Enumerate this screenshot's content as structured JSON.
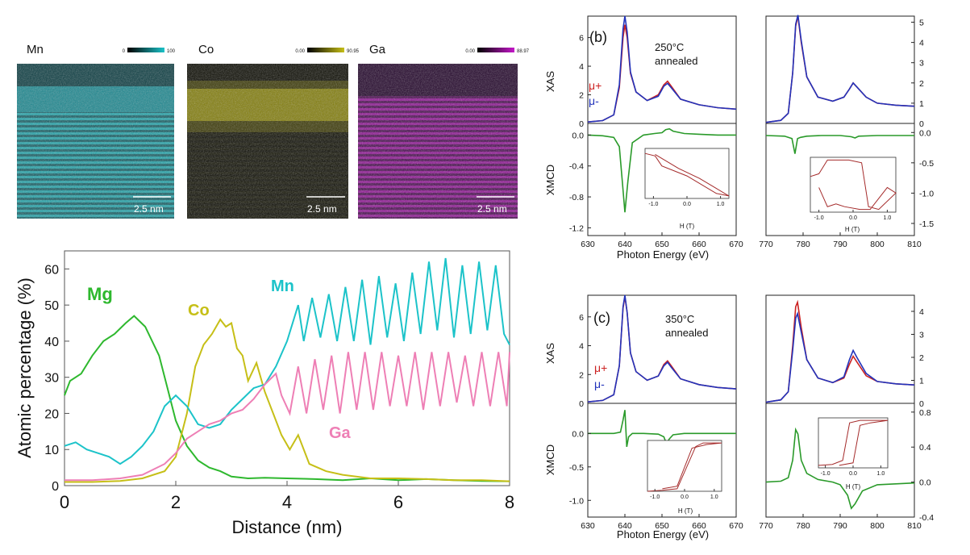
{
  "colors": {
    "mn": "#1cc3c9",
    "co": "#c6bf17",
    "ga": "#ee7fb5",
    "mg": "#2eb82e",
    "mu_plus": "#cc2222",
    "mu_minus": "#2233bb",
    "xmcd": "#2a9a2a",
    "loop": "#a42a2a"
  },
  "maps": [
    {
      "label": "Mn",
      "min": "0",
      "max": "100",
      "scale": "2.5 nm",
      "color": "#1cc3c9"
    },
    {
      "label": "Co",
      "min": "0.00",
      "max": "90.95",
      "scale": "2.5 nm",
      "color": "#c6bf17"
    },
    {
      "label": "Ga",
      "min": "0.00",
      "max": "88.97",
      "scale": "2.5 nm",
      "color": "#c417c9"
    }
  ],
  "chart_data": [
    {
      "type": "line",
      "xlabel": "Distance (nm)",
      "ylabel": "Atomic percentage (%)",
      "xlim": [
        0,
        8
      ],
      "ylim": [
        0,
        65
      ],
      "xticks": [
        "0",
        "2",
        "4",
        "6",
        "8"
      ],
      "yticks": [
        "0",
        "10",
        "20",
        "30",
        "40",
        "50",
        "60"
      ],
      "grid": false,
      "series": [
        {
          "name": "Mg",
          "color": "#2eb82e",
          "x": [
            0,
            0.1,
            0.3,
            0.5,
            0.7,
            0.9,
            1.1,
            1.25,
            1.45,
            1.7,
            1.85,
            2.0,
            2.2,
            2.4,
            2.6,
            2.8,
            3.0,
            3.3,
            3.6,
            4.0,
            4.5,
            5.0,
            5.5,
            6.0,
            6.5,
            7.0,
            7.5,
            8.0
          ],
          "y": [
            25,
            29,
            31,
            36,
            40,
            42,
            45,
            47,
            44,
            36,
            27,
            18,
            11,
            7,
            5,
            4,
            2.5,
            2,
            2.2,
            2,
            1.8,
            1.5,
            2,
            1.5,
            1.8,
            1.5,
            1.3,
            1.2
          ]
        },
        {
          "name": "Co",
          "color": "#c6bf17",
          "x": [
            0,
            0.5,
            1.0,
            1.4,
            1.8,
            2.0,
            2.2,
            2.35,
            2.5,
            2.65,
            2.8,
            2.9,
            3.0,
            3.1,
            3.2,
            3.3,
            3.45,
            3.6,
            3.75,
            3.9,
            4.05,
            4.2,
            4.4,
            4.7,
            5.0,
            5.5,
            6.0,
            6.5,
            7.0,
            7.5,
            8.0
          ],
          "y": [
            1,
            1,
            1.3,
            2,
            4,
            8,
            20,
            33,
            39,
            42,
            46,
            44,
            45,
            38,
            36,
            29,
            34,
            26,
            20,
            14,
            10,
            14,
            6,
            4,
            3,
            2,
            2,
            1.8,
            1.5,
            1.5,
            1.2
          ]
        },
        {
          "name": "Mn",
          "color": "#1cc3c9",
          "x": [
            0,
            0.2,
            0.4,
            0.6,
            0.8,
            1.0,
            1.2,
            1.4,
            1.6,
            1.8,
            2.0,
            2.2,
            2.4,
            2.6,
            2.8,
            3.0,
            3.2,
            3.4,
            3.6,
            3.8,
            4.0,
            4.2,
            4.3,
            4.45,
            4.6,
            4.75,
            4.9,
            5.05,
            5.2,
            5.35,
            5.5,
            5.65,
            5.8,
            5.95,
            6.1,
            6.25,
            6.4,
            6.55,
            6.7,
            6.85,
            7.0,
            7.15,
            7.3,
            7.45,
            7.6,
            7.75,
            7.9,
            8.0
          ],
          "y": [
            11,
            12,
            10,
            9,
            8,
            6,
            8,
            11,
            15,
            22,
            25,
            22,
            17,
            16,
            17,
            21,
            24,
            27,
            28,
            33,
            40,
            50,
            40,
            52,
            41,
            53,
            40,
            55,
            40,
            57,
            39,
            58,
            41,
            56,
            40,
            59,
            42,
            62,
            43,
            63,
            41,
            61,
            42,
            62,
            43,
            61,
            42,
            39
          ]
        },
        {
          "name": "Ga",
          "color": "#ee7fb5",
          "x": [
            0,
            0.5,
            1.0,
            1.4,
            1.8,
            2.0,
            2.2,
            2.4,
            2.6,
            2.8,
            3.0,
            3.2,
            3.4,
            3.6,
            3.8,
            3.9,
            4.05,
            4.2,
            4.35,
            4.5,
            4.65,
            4.8,
            4.95,
            5.1,
            5.25,
            5.4,
            5.55,
            5.7,
            5.85,
            6.0,
            6.15,
            6.3,
            6.45,
            6.6,
            6.75,
            6.9,
            7.05,
            7.2,
            7.35,
            7.5,
            7.65,
            7.8,
            7.95,
            8.0
          ],
          "y": [
            1.5,
            1.5,
            2,
            3,
            6,
            9,
            13,
            15,
            17,
            18,
            20,
            21,
            24,
            28,
            31,
            25,
            20,
            33,
            20,
            35,
            21,
            36,
            20,
            37,
            21,
            37,
            21,
            37,
            22,
            36,
            22,
            37,
            21,
            37,
            22,
            37,
            23,
            36,
            22,
            37,
            22,
            37,
            22,
            37
          ]
        }
      ],
      "annotations": [
        "Mg",
        "Co",
        "Mn",
        "Ga"
      ]
    },
    {
      "type": "line",
      "panel": "(b)",
      "annotation": [
        "250°C",
        "annealed"
      ],
      "xlabel": "Photon Energy (eV)",
      "ylabels": [
        "XAS",
        "XMCD"
      ],
      "legend": [
        "μ+",
        "μ-"
      ],
      "left_xlim": [
        630,
        670
      ],
      "right_xlim": [
        770,
        810
      ],
      "left_xticks": [
        "630",
        "640",
        "650",
        "660",
        "670"
      ],
      "right_xticks": [
        "770",
        "780",
        "790",
        "800",
        "810"
      ],
      "xas_left_ylim": [
        0,
        7.5
      ],
      "xas_left_yticks": [
        "0",
        "2",
        "4",
        "6"
      ],
      "xas_right_ylim": [
        0,
        5.3
      ],
      "xas_right_yticks": [
        "0",
        "1",
        "2",
        "3",
        "4",
        "5"
      ],
      "xmcd_left_ylim": [
        -1.3,
        0.15
      ],
      "xmcd_left_yticks": [
        "0.0",
        "-0.4",
        "-0.8",
        "-1.2"
      ],
      "xmcd_right_ylim": [
        -1.7,
        0.15
      ],
      "xmcd_right_yticks": [
        "0.0",
        "-0.5",
        "-1.0",
        "-1.5"
      ],
      "inset_xlabel": "H (T)",
      "inset_xticks": [
        "-1.0",
        "0.0",
        "1.0"
      ],
      "xas_left": {
        "x": [
          630,
          634,
          637,
          638.5,
          639.5,
          640,
          640.6,
          641.5,
          643,
          646,
          649,
          650.5,
          651.5,
          652.5,
          655,
          660,
          665,
          670
        ],
        "mu_plus": [
          0.1,
          0.2,
          0.6,
          2.5,
          6.0,
          6.9,
          6.0,
          3.5,
          2.2,
          1.6,
          2.0,
          2.7,
          2.95,
          2.6,
          1.7,
          1.3,
          1.1,
          1.0
        ],
        "mu_minus": [
          0.1,
          0.2,
          0.6,
          2.7,
          6.6,
          7.5,
          6.4,
          3.6,
          2.2,
          1.6,
          1.9,
          2.6,
          2.8,
          2.5,
          1.7,
          1.3,
          1.1,
          1.0
        ]
      },
      "xas_right": {
        "x": [
          770,
          774,
          776,
          777.2,
          778,
          778.6,
          779.5,
          781,
          784,
          788,
          791,
          792.5,
          793.5,
          794.5,
          797,
          800,
          805,
          810
        ],
        "mu_plus": [
          0.05,
          0.15,
          0.5,
          2.5,
          4.8,
          5.3,
          4.0,
          2.3,
          1.3,
          1.1,
          1.3,
          1.7,
          2.0,
          1.8,
          1.3,
          1.0,
          0.9,
          0.85
        ],
        "mu_minus": [
          0.05,
          0.15,
          0.5,
          2.5,
          4.9,
          5.35,
          4.1,
          2.3,
          1.3,
          1.1,
          1.3,
          1.7,
          2.0,
          1.8,
          1.3,
          1.0,
          0.9,
          0.85
        ]
      },
      "xmcd_left": {
        "x": [
          630,
          634,
          637,
          638.5,
          639.3,
          640,
          640.8,
          642,
          645,
          648,
          650,
          651,
          652,
          653,
          656,
          660,
          665,
          670
        ],
        "y": [
          0.0,
          -0.01,
          -0.03,
          -0.15,
          -0.6,
          -1.0,
          -0.6,
          -0.1,
          0.0,
          0.02,
          0.03,
          0.07,
          0.08,
          0.05,
          0.02,
          0.01,
          0.0,
          0.0
        ]
      },
      "xmcd_right": {
        "x": [
          770,
          775,
          777,
          777.8,
          778.5,
          779.3,
          781,
          785,
          790,
          793,
          794,
          795,
          800,
          805,
          810
        ],
        "y": [
          -0.05,
          -0.06,
          -0.1,
          -0.35,
          -0.1,
          -0.08,
          -0.06,
          -0.05,
          -0.05,
          -0.07,
          -0.09,
          -0.06,
          -0.05,
          -0.05,
          -0.05
        ]
      }
    },
    {
      "type": "line",
      "panel": "(c)",
      "annotation": [
        "350°C",
        "annealed"
      ],
      "xlabel": "Photon Energy (eV)",
      "ylabels": [
        "XAS",
        "XMCD"
      ],
      "legend": [
        "μ+",
        "μ-"
      ],
      "left_xlim": [
        630,
        670
      ],
      "right_xlim": [
        770,
        810
      ],
      "left_xticks": [
        "630",
        "640",
        "650",
        "660",
        "670"
      ],
      "right_xticks": [
        "770",
        "780",
        "790",
        "800",
        "810"
      ],
      "xas_left_ylim": [
        0,
        7.5
      ],
      "xas_left_yticks": [
        "0",
        "2",
        "4",
        "6"
      ],
      "xas_right_ylim": [
        0,
        4.7
      ],
      "xas_right_yticks": [
        "0",
        "1",
        "2",
        "3",
        "4"
      ],
      "xmcd_left_ylim": [
        -1.25,
        0.45
      ],
      "xmcd_left_yticks": [
        "0.0",
        "-0.5",
        "-1.0"
      ],
      "xmcd_right_ylim": [
        -0.4,
        0.9
      ],
      "xmcd_right_yticks": [
        "0.8",
        "0.4",
        "0.0",
        "-0.4"
      ],
      "inset_xlabel": "H (T)",
      "inset_xticks": [
        "-1.0",
        "0.0",
        "1.0"
      ],
      "xas_left": {
        "x": [
          630,
          634,
          637,
          638.5,
          639.5,
          640,
          640.6,
          641.5,
          643,
          646,
          649,
          650.5,
          651.5,
          652.5,
          655,
          660,
          665,
          670
        ],
        "mu_plus": [
          0.1,
          0.2,
          0.6,
          2.6,
          6.6,
          7.4,
          6.3,
          3.5,
          2.2,
          1.6,
          1.9,
          2.7,
          2.95,
          2.6,
          1.7,
          1.3,
          1.1,
          1.0
        ],
        "mu_minus": [
          0.1,
          0.2,
          0.6,
          2.6,
          6.7,
          7.5,
          6.3,
          3.5,
          2.2,
          1.6,
          1.9,
          2.6,
          2.85,
          2.5,
          1.7,
          1.3,
          1.1,
          1.0
        ]
      },
      "xas_right": {
        "x": [
          770,
          774,
          776,
          777.2,
          778,
          778.5,
          779.5,
          781,
          784,
          788,
          791,
          792.5,
          793.5,
          794.5,
          797,
          800,
          805,
          810
        ],
        "mu_plus": [
          0.05,
          0.15,
          0.5,
          2.5,
          4.2,
          4.4,
          3.3,
          1.9,
          1.1,
          0.9,
          1.1,
          1.7,
          2.05,
          1.8,
          1.2,
          0.95,
          0.85,
          0.8
        ],
        "mu_minus": [
          0.05,
          0.15,
          0.5,
          2.3,
          3.7,
          3.9,
          3.1,
          1.9,
          1.1,
          0.9,
          1.15,
          1.9,
          2.3,
          2.0,
          1.3,
          0.95,
          0.85,
          0.8
        ]
      },
      "xmcd_left": {
        "x": [
          630,
          634,
          637,
          638.8,
          639.5,
          640,
          640.5,
          641,
          642,
          645,
          649,
          650.5,
          651.2,
          652,
          653,
          656,
          660,
          665,
          670
        ],
        "y": [
          0.0,
          0.0,
          0.0,
          0.02,
          0.2,
          0.35,
          -0.2,
          -0.05,
          0.0,
          0.0,
          -0.01,
          -0.05,
          -0.15,
          -0.08,
          -0.02,
          0.0,
          0.0,
          0.0,
          0.0
        ]
      },
      "xmcd_right": {
        "x": [
          770,
          774,
          776,
          777.2,
          778,
          778.6,
          779.5,
          781,
          784,
          788,
          790,
          792,
          793,
          794,
          796,
          800,
          805,
          810
        ],
        "y": [
          0.0,
          0.01,
          0.05,
          0.25,
          0.6,
          0.55,
          0.25,
          0.1,
          0.03,
          0.0,
          -0.03,
          -0.15,
          -0.3,
          -0.25,
          -0.1,
          -0.03,
          -0.02,
          -0.01
        ]
      }
    }
  ]
}
